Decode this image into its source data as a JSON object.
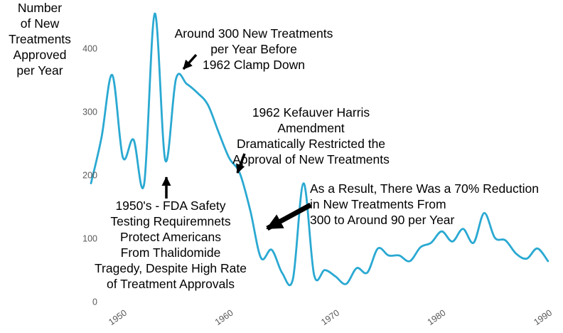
{
  "chart": {
    "background": "#ffffff",
    "line_color": "#2aa9d2",
    "annotation_color": "#000000",
    "tick_color": "#58595b",
    "y_axis_title": "Number\nof New\nTreatments\nApproved\nper Year",
    "x_ticks": [
      1950,
      1960,
      1970,
      1980,
      1990
    ],
    "y_ticks": [
      0,
      100,
      200,
      300,
      400
    ]
  },
  "chart_data": {
    "type": "line",
    "title": "",
    "xlabel": "",
    "ylabel": "Number of New Treatments Approved per Year",
    "x_range": [
      1947,
      1990
    ],
    "ylim": [
      0,
      460
    ],
    "x_tick_labels": [
      "1950",
      "1960",
      "1970",
      "1980",
      "1990"
    ],
    "y_tick_labels": [
      "0",
      "100",
      "200",
      "300",
      "400"
    ],
    "grid": false,
    "legend": "none",
    "series": [
      {
        "name": "New Treatments Approved per Year",
        "color": "#2aa9d2",
        "points": [
          [
            1947,
            187
          ],
          [
            1948,
            260
          ],
          [
            1949,
            358
          ],
          [
            1950,
            228
          ],
          [
            1951,
            256
          ],
          [
            1952,
            186
          ],
          [
            1953,
            455
          ],
          [
            1954,
            223
          ],
          [
            1955,
            352
          ],
          [
            1956,
            344
          ],
          [
            1957,
            330
          ],
          [
            1958,
            311
          ],
          [
            1959,
            268
          ],
          [
            1960,
            227
          ],
          [
            1961,
            203
          ],
          [
            1962,
            143
          ],
          [
            1963,
            69
          ],
          [
            1964,
            82
          ],
          [
            1965,
            45
          ],
          [
            1966,
            36
          ],
          [
            1967,
            187
          ],
          [
            1968,
            42
          ],
          [
            1969,
            50
          ],
          [
            1970,
            40
          ],
          [
            1971,
            28
          ],
          [
            1972,
            53
          ],
          [
            1973,
            46
          ],
          [
            1974,
            84
          ],
          [
            1975,
            73
          ],
          [
            1976,
            73
          ],
          [
            1977,
            64
          ],
          [
            1978,
            86
          ],
          [
            1979,
            93
          ],
          [
            1980,
            111
          ],
          [
            1981,
            95
          ],
          [
            1982,
            115
          ],
          [
            1983,
            93
          ],
          [
            1984,
            140
          ],
          [
            1985,
            101
          ],
          [
            1986,
            97
          ],
          [
            1987,
            76
          ],
          [
            1988,
            68
          ],
          [
            1989,
            84
          ],
          [
            1990,
            64
          ]
        ]
      }
    ]
  },
  "annotations": [
    {
      "id": "around-300",
      "text": "Around 300 New Treatments\nper Year Before\n1962 Clamp Down"
    },
    {
      "id": "kefauver-harris",
      "text": "1962 Kefauver Harris Amendment\nDramatically Restricted the\nApproval of New Treatments"
    },
    {
      "id": "seventy-percent-reduction",
      "text": "As a Result, There Was a 70% Reduction\nin New Treatments From\n300 to Around 90 per Year"
    },
    {
      "id": "fda-safety",
      "text": "1950's - FDA Safety\nTesting Requiremnets\nProtect Americans\nFrom Thalidomide\nTragedy, Despite High Rate\nof Treatment Approvals"
    }
  ]
}
